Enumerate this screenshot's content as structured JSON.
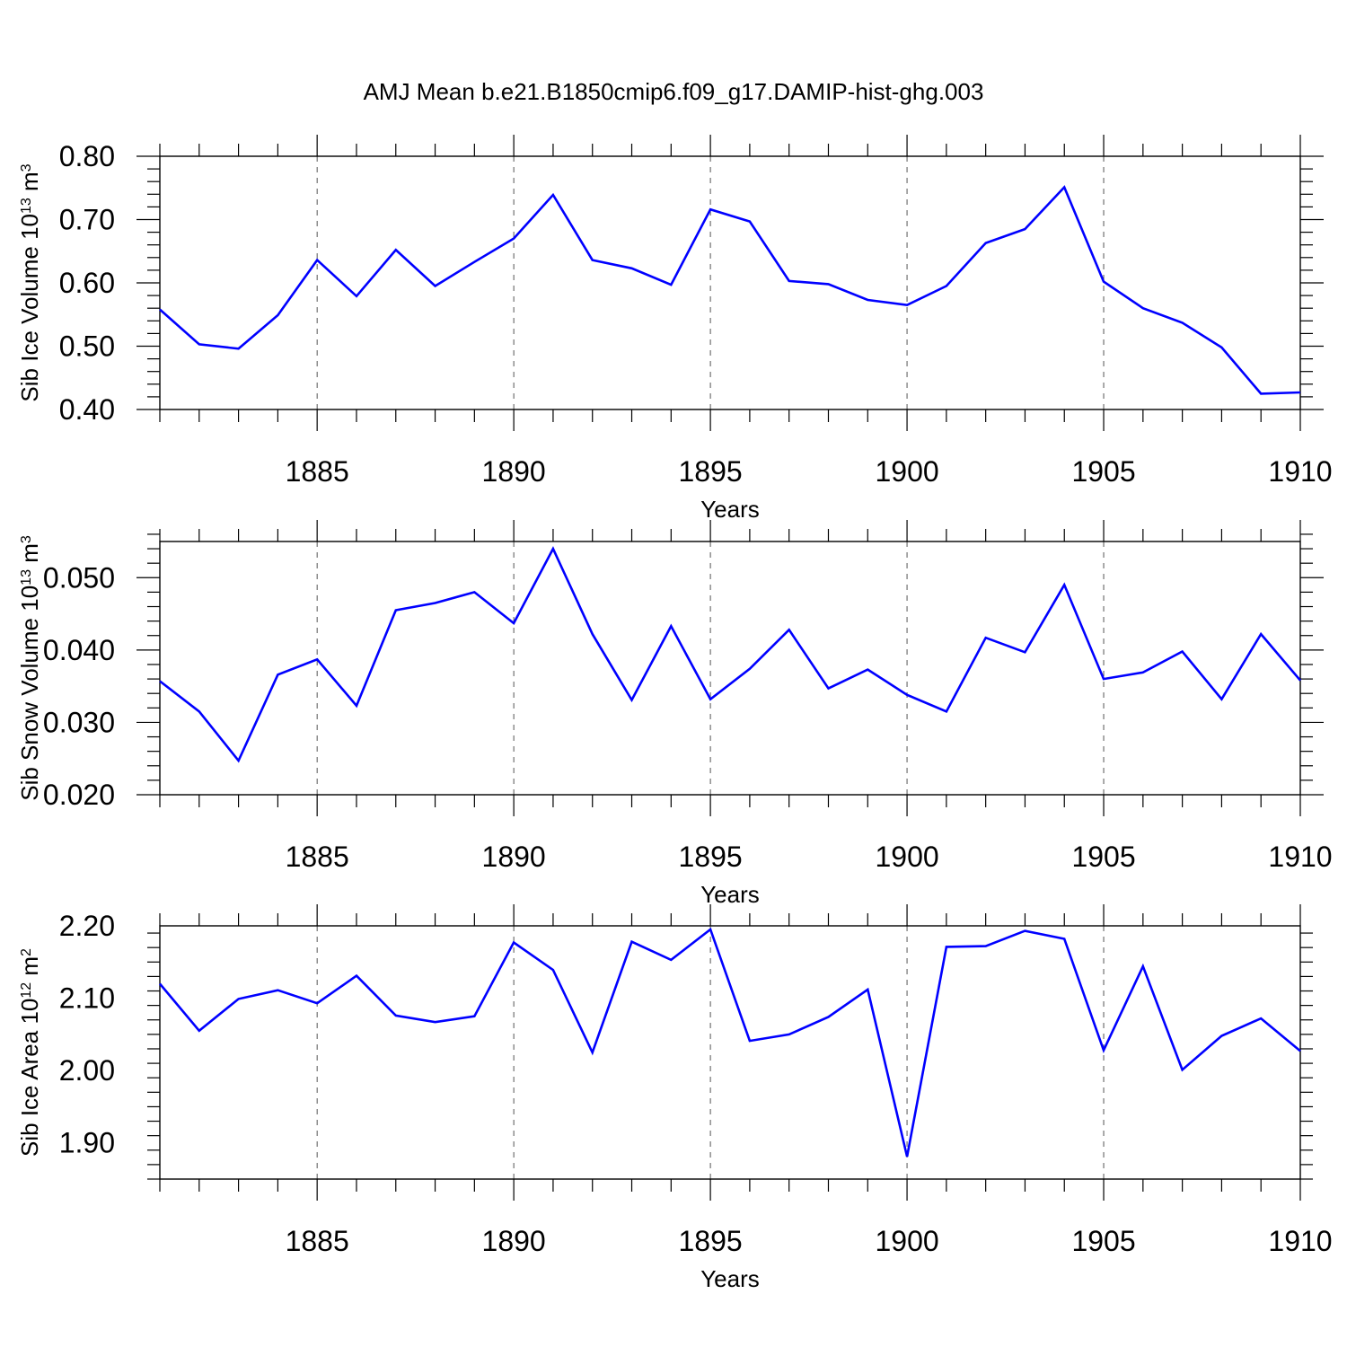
{
  "title": "AMJ Mean b.e21.B1850cmip6.f09_g17.DAMIP-hist-ghg.003",
  "colors": {
    "series": "#0000ff",
    "axis": "#000000",
    "grid": "#555555"
  },
  "chart_data": [
    {
      "type": "line",
      "xlabel": "Years",
      "ylabel_main": "Sib Ice Volume 10",
      "ylabel_exp": "13",
      "ylabel_unit": " m",
      "ylabel_unit_exp": "3",
      "xlim": [
        1881,
        1910
      ],
      "ylim": [
        0.4,
        0.8
      ],
      "x_ticks": [
        1885,
        1890,
        1895,
        1900,
        1905,
        1910
      ],
      "x_tick_labels": [
        "1885",
        "1890",
        "1895",
        "1900",
        "1905",
        "1910"
      ],
      "y_ticks": [
        0.4,
        0.5,
        0.6,
        0.7,
        0.8
      ],
      "y_tick_labels": [
        "0.40",
        "0.50",
        "0.60",
        "0.70",
        "0.80"
      ],
      "x": [
        1881,
        1882,
        1883,
        1884,
        1885,
        1886,
        1887,
        1888,
        1889,
        1890,
        1891,
        1892,
        1893,
        1894,
        1895,
        1896,
        1897,
        1898,
        1899,
        1900,
        1901,
        1902,
        1903,
        1904,
        1905,
        1906,
        1907,
        1908,
        1909,
        1910
      ],
      "values": [
        0.558,
        0.503,
        0.496,
        0.549,
        0.636,
        0.579,
        0.652,
        0.595,
        0.633,
        0.67,
        0.739,
        0.636,
        0.623,
        0.597,
        0.716,
        0.697,
        0.603,
        0.598,
        0.573,
        0.565,
        0.595,
        0.663,
        0.685,
        0.751,
        0.602,
        0.56,
        0.537,
        0.498,
        0.425,
        0.427
      ]
    },
    {
      "type": "line",
      "xlabel": "Years",
      "ylabel_main": "Sib Snow Volume 10",
      "ylabel_exp": "13",
      "ylabel_unit": " m",
      "ylabel_unit_exp": "3",
      "xlim": [
        1881,
        1910
      ],
      "ylim": [
        0.02,
        0.055
      ],
      "x_ticks": [
        1885,
        1890,
        1895,
        1900,
        1905,
        1910
      ],
      "x_tick_labels": [
        "1885",
        "1890",
        "1895",
        "1900",
        "1905",
        "1910"
      ],
      "y_ticks": [
        0.02,
        0.03,
        0.04,
        0.05
      ],
      "y_tick_labels": [
        "0.020",
        "0.030",
        "0.040",
        "0.050"
      ],
      "x": [
        1881,
        1882,
        1883,
        1884,
        1885,
        1886,
        1887,
        1888,
        1889,
        1890,
        1891,
        1892,
        1893,
        1894,
        1895,
        1896,
        1897,
        1898,
        1899,
        1900,
        1901,
        1902,
        1903,
        1904,
        1905,
        1906,
        1907,
        1908,
        1909,
        1910
      ],
      "values": [
        0.0357,
        0.0315,
        0.0247,
        0.0366,
        0.0387,
        0.0323,
        0.0455,
        0.0465,
        0.048,
        0.0437,
        0.054,
        0.0422,
        0.0331,
        0.0433,
        0.0332,
        0.0374,
        0.0428,
        0.0347,
        0.0373,
        0.0338,
        0.0315,
        0.0417,
        0.0397,
        0.049,
        0.036,
        0.0369,
        0.0398,
        0.0332,
        0.0422,
        0.0358
      ]
    },
    {
      "type": "line",
      "xlabel": "Years",
      "ylabel_main": "Sib Ice Area 10",
      "ylabel_exp": "12",
      "ylabel_unit": " m",
      "ylabel_unit_exp": "2",
      "xlim": [
        1881,
        1910
      ],
      "ylim": [
        1.85,
        2.2
      ],
      "x_ticks": [
        1885,
        1890,
        1895,
        1900,
        1905,
        1910
      ],
      "x_tick_labels": [
        "1885",
        "1890",
        "1895",
        "1900",
        "1905",
        "1910"
      ],
      "y_ticks": [
        1.9,
        2.0,
        2.1,
        2.2
      ],
      "y_tick_labels": [
        "1.90",
        "2.00",
        "2.10",
        "2.20"
      ],
      "x": [
        1881,
        1882,
        1883,
        1884,
        1885,
        1886,
        1887,
        1888,
        1889,
        1890,
        1891,
        1892,
        1893,
        1894,
        1895,
        1896,
        1897,
        1898,
        1899,
        1900,
        1901,
        1902,
        1903,
        1904,
        1905,
        1906,
        1907,
        1908,
        1909,
        1910
      ],
      "values": [
        2.12,
        2.055,
        2.099,
        2.111,
        2.093,
        2.131,
        2.076,
        2.067,
        2.075,
        2.177,
        2.139,
        2.025,
        2.178,
        2.153,
        2.195,
        2.041,
        2.05,
        2.074,
        2.112,
        1.881,
        2.171,
        2.172,
        2.193,
        2.182,
        2.028,
        2.144,
        2.001,
        2.048,
        2.072,
        2.027
      ]
    }
  ]
}
